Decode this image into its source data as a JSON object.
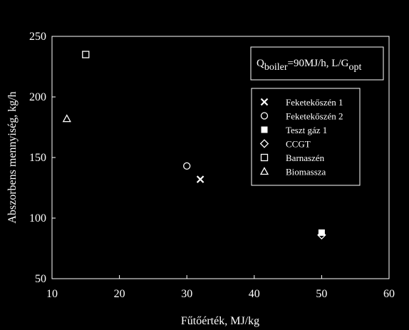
{
  "chart_data": {
    "type": "scatter",
    "xlabel": "Fűtőérték, MJ/kg",
    "ylabel": "Abszorbens mennyiség, kg/h",
    "xlim": [
      10,
      60
    ],
    "ylim": [
      50,
      250
    ],
    "xticks": [
      10,
      20,
      30,
      40,
      50,
      60
    ],
    "yticks": [
      50,
      100,
      150,
      200,
      250
    ],
    "grid": false,
    "legend_position": "right",
    "annotation": {
      "q": "Q",
      "sub1": "boiler",
      "mid": "=90MJ/h, L/G",
      "sub2": "opt"
    },
    "series": [
      {
        "name": "Feketekőszén 1",
        "marker": "x",
        "x": [
          32
        ],
        "y": [
          132
        ]
      },
      {
        "name": "Feketekőszén 2",
        "marker": "circle",
        "x": [
          30
        ],
        "y": [
          143
        ]
      },
      {
        "name": "Teszt gáz 1",
        "marker": "square-filled",
        "x": [
          50
        ],
        "y": [
          88
        ]
      },
      {
        "name": "CCGT",
        "marker": "diamond",
        "x": [
          50
        ],
        "y": [
          86
        ]
      },
      {
        "name": "Barnaszén",
        "marker": "square-open",
        "x": [
          15
        ],
        "y": [
          235
        ]
      },
      {
        "name": "Biomassza",
        "marker": "triangle",
        "x": [
          12.2
        ],
        "y": [
          182
        ]
      }
    ]
  }
}
